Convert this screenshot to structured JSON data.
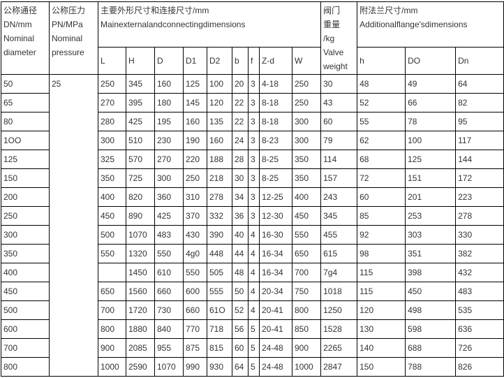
{
  "header": {
    "dn": [
      "公称通径",
      "DN/mm",
      "Nominal",
      "diameter"
    ],
    "pn": [
      "公称压力",
      "PN/MPa",
      "Nominal",
      "pressure"
    ],
    "main": [
      "主要外形尺寸和连接尺寸/mm",
      "Mainexternalandconnectingdimensions"
    ],
    "weight": [
      "阀门",
      "重量",
      "/kg",
      "Valve",
      "weight"
    ],
    "flange": [
      "附法兰尺寸/mm",
      "Additionalflange'sdimensions"
    ],
    "main_cols": [
      "L",
      "H",
      "D",
      "D1",
      "D2",
      "b",
      "f",
      "Z-d",
      "W"
    ],
    "flange_cols": [
      "h",
      "DO",
      "Dn"
    ]
  },
  "pn_value": "25",
  "rows": [
    {
      "dn": "50",
      "L": "250",
      "H": "345",
      "D": "160",
      "D1": "125",
      "D2": "100",
      "b": "20",
      "f": "3",
      "Zd": "4-18",
      "W": "250",
      "kg": "30",
      "h": "48",
      "DO": "49",
      "Dn": "64"
    },
    {
      "dn": "65",
      "L": "270",
      "H": "395",
      "D": "180",
      "D1": "145",
      "D2": "120",
      "b": "22",
      "f": "3",
      "Zd": "8-18",
      "W": "250",
      "kg": "43",
      "h": "52",
      "DO": "66",
      "Dn": "82"
    },
    {
      "dn": "80",
      "L": "280",
      "H": "425",
      "D": "195",
      "D1": "160",
      "D2": "135",
      "b": "22",
      "f": "3",
      "Zd": "8-18",
      "W": "300",
      "kg": "60",
      "h": "55",
      "DO": "78",
      "Dn": "95"
    },
    {
      "dn": "1OO",
      "L": "300",
      "H": "510",
      "D": "230",
      "D1": "190",
      "D2": "160",
      "b": "24",
      "f": "3",
      "Zd": "8-23",
      "W": "300",
      "kg": "79",
      "h": "62",
      "DO": "100",
      "Dn": "117"
    },
    {
      "dn": "125",
      "L": "325",
      "H": "570",
      "D": "270",
      "D1": "220",
      "D2": "188",
      "b": "28",
      "f": "3",
      "Zd": "8-25",
      "W": "350",
      "kg": "114",
      "h": "68",
      "DO": "125",
      "Dn": "144"
    },
    {
      "dn": "150",
      "L": "350",
      "H": "725",
      "D": "300",
      "D1": "250",
      "D2": "218",
      "b": "30",
      "f": "3",
      "Zd": "8-25",
      "W": "350",
      "kg": "157",
      "h": "72",
      "DO": "151",
      "Dn": "172"
    },
    {
      "dn": "200",
      "L": "400",
      "H": "820",
      "D": "360",
      "D1": "310",
      "D2": "278",
      "b": "34",
      "f": "3",
      "Zd": "12-25",
      "W": "400",
      "kg": "243",
      "h": "60",
      "DO": "201",
      "Dn": "223"
    },
    {
      "dn": "250",
      "L": "450",
      "H": "890",
      "D": "425",
      "D1": "370",
      "D2": "332",
      "b": "36",
      "f": "3",
      "Zd": "12-30",
      "W": "450",
      "kg": "345",
      "h": "85",
      "DO": "253",
      "Dn": "278"
    },
    {
      "dn": "300",
      "L": "500",
      "H": "1070",
      "D": "483",
      "D1": "430",
      "D2": "390",
      "b": "40",
      "f": "4",
      "Zd": "16-30",
      "W": "550",
      "kg": "455",
      "h": "92",
      "DO": "303",
      "Dn": "330"
    },
    {
      "dn": "350",
      "L": "550",
      "H": "1320",
      "D": "550",
      "D1": "4g0",
      "D2": "448",
      "b": "44",
      "f": "4",
      "Zd": "16-34",
      "W": "650",
      "kg": "615",
      "h": "98",
      "DO": "351",
      "Dn": "382"
    },
    {
      "dn": "400",
      "L": "",
      "H": "1450",
      "D": "610",
      "D1": "550",
      "D2": "505",
      "b": "48",
      "f": "4",
      "Zd": "16-34",
      "W": "700",
      "kg": "7g4",
      "h": "115",
      "DO": "398",
      "Dn": "432"
    },
    {
      "dn": "450",
      "L": "650",
      "H": "1560",
      "D": "660",
      "D1": "600",
      "D2": "555",
      "b": "50",
      "f": "4",
      "Zd": "20-34",
      "W": "750",
      "kg": "1018",
      "h": "115",
      "DO": "450",
      "Dn": "483"
    },
    {
      "dn": "500",
      "L": "700",
      "H": "1720",
      "D": "730",
      "D1": "660",
      "D2": "61O",
      "b": "52",
      "f": "4",
      "Zd": "20-41",
      "W": "800",
      "kg": "1250",
      "h": "120",
      "DO": "498",
      "Dn": "535"
    },
    {
      "dn": "600",
      "L": "800",
      "H": "1880",
      "D": "840",
      "D1": "770",
      "D2": "718",
      "b": "56",
      "f": "5",
      "Zd": "20-41",
      "W": "850",
      "kg": "1528",
      "h": "130",
      "DO": "598",
      "Dn": "636"
    },
    {
      "dn": "700",
      "L": "900",
      "H": "2085",
      "D": "955",
      "D1": "875",
      "D2": "815",
      "b": "60",
      "f": "5",
      "Zd": "24-48",
      "W": "900",
      "kg": "2265",
      "h": "140",
      "DO": "688",
      "Dn": "726"
    },
    {
      "dn": "800",
      "L": "1000",
      "H": "2590",
      "D": "1070",
      "D1": "990",
      "D2": "930",
      "b": "64",
      "f": "5",
      "Zd": "24-48",
      "W": "1000",
      "kg": "2847",
      "h": "150",
      "DO": "788",
      "Dn": "826"
    }
  ]
}
